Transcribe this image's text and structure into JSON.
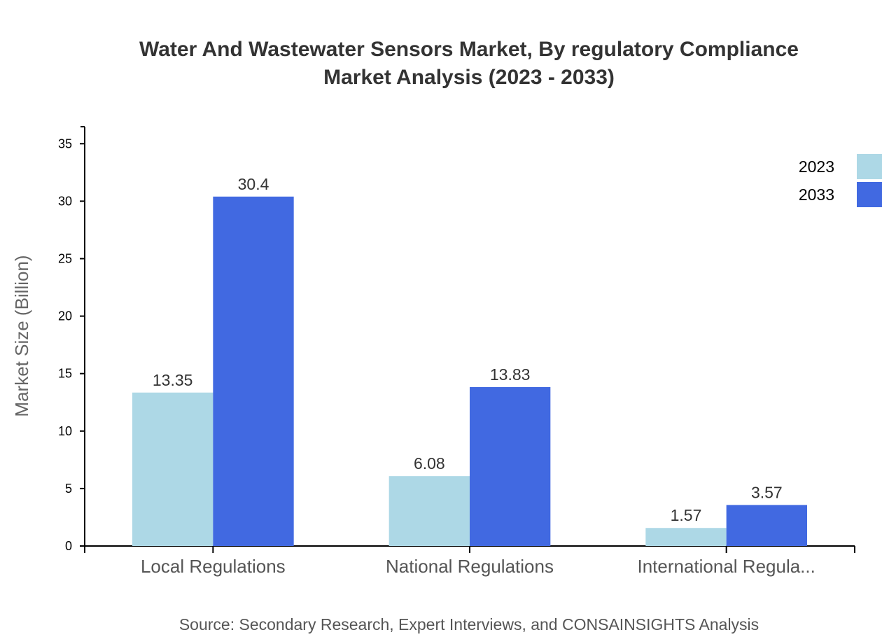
{
  "chart_data": {
    "type": "bar",
    "title": [
      "Water And Wastewater Sensors Market, By regulatory Compliance",
      "Market Analysis (2023 - 2033)"
    ],
    "xlabel": "",
    "ylabel": "Market Size (Billion)",
    "categories": [
      "Local Regulations",
      "National Regulations",
      "International Regula..."
    ],
    "series": [
      {
        "name": "2023",
        "values": [
          13.35,
          6.08,
          1.57
        ],
        "color": "#ADD8E6"
      },
      {
        "name": "2033",
        "values": [
          30.4,
          13.83,
          3.57
        ],
        "color": "#4169E1"
      }
    ],
    "ylim": [
      0,
      36.48
    ],
    "yticks": [
      0,
      5,
      10,
      15,
      20,
      25,
      30,
      35
    ],
    "grid": false,
    "legend": "top-right",
    "source": "Source: Secondary Research, Expert Interviews, and CONSAINSIGHTS Analysis"
  }
}
